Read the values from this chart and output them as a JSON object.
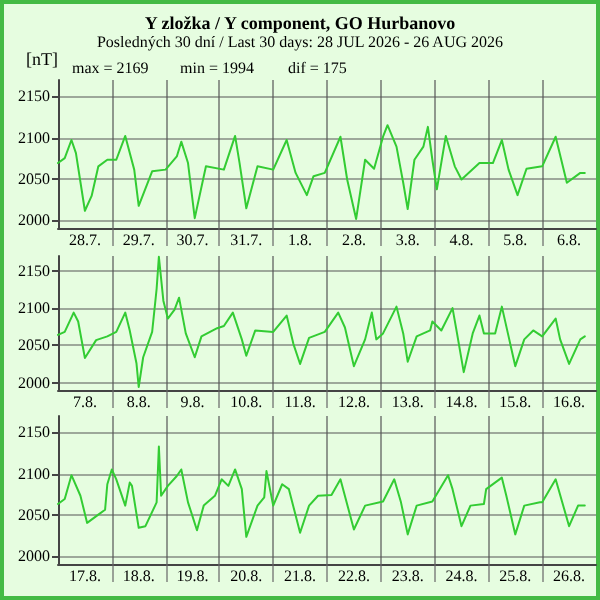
{
  "chart_data": [
    {
      "type": "line",
      "title": "Y zložka / Y component, GO Hurbanovo",
      "subtitle": "Posledných 30 dní / Last 30 days: 28 JUL 2026 - 26 AUG 2026",
      "ylabel": "[nT]",
      "annotations": [
        "max = 2169",
        "min = 1994",
        "dif = 175"
      ],
      "xlim": [
        "2026-07-28",
        "2026-08-07"
      ],
      "xticks": [
        {
          "value": "2026-07-28T12:00",
          "label": "28.7."
        },
        {
          "value": "2026-07-29",
          "label": null
        },
        {
          "value": "2026-07-29T12:00",
          "label": "29.7."
        },
        {
          "value": "2026-07-30",
          "label": null
        },
        {
          "value": "2026-07-30T12:00",
          "label": "30.7."
        },
        {
          "value": "2026-07-31",
          "label": null
        },
        {
          "value": "2026-07-31T12:00",
          "label": "31.7."
        },
        {
          "value": "2026-08-01",
          "label": null
        },
        {
          "value": "2026-08-01T12:00",
          "label": "1.8."
        },
        {
          "value": "2026-08-02",
          "label": null
        },
        {
          "value": "2026-08-02T12:00",
          "label": "2.8."
        },
        {
          "value": "2026-08-03",
          "label": null
        },
        {
          "value": "2026-08-03T12:00",
          "label": "3.8."
        },
        {
          "value": "2026-08-04",
          "label": null
        },
        {
          "value": "2026-08-04T12:00",
          "label": "4.8."
        },
        {
          "value": "2026-08-05",
          "label": null
        },
        {
          "value": "2026-08-05T12:00",
          "label": "5.8."
        },
        {
          "value": "2026-08-06",
          "label": null
        },
        {
          "value": "2026-08-06T12:00",
          "label": "6.8."
        }
      ],
      "ylim": [
        1990,
        2170
      ],
      "yticks": [
        2000,
        2050,
        2100,
        2150
      ],
      "grid": true,
      "marker": "none",
      "series": [
        {
          "color": "#33cc33",
          "x": [
            "2026-07-28T00:00",
            "2026-07-28T03:00",
            "2026-07-28T06:00",
            "2026-07-28T08:00",
            "2026-07-28T12:00",
            "2026-07-28T15:00",
            "2026-07-28T18:00",
            "2026-07-28T22:00",
            "2026-07-29T02:00",
            "2026-07-29T06:00",
            "2026-07-29T10:00",
            "2026-07-29T12:00",
            "2026-07-29T18:00",
            "2026-07-30T00:00",
            "2026-07-30T05:00",
            "2026-07-30T07:00",
            "2026-07-30T10:00",
            "2026-07-30T13:00",
            "2026-07-30T18:00",
            "2026-07-31T02:00",
            "2026-07-31T07:00",
            "2026-07-31T09:00",
            "2026-07-31T12:00",
            "2026-07-31T17:00",
            "2026-08-01T00:00",
            "2026-08-01T06:00",
            "2026-08-01T10:00",
            "2026-08-01T15:00",
            "2026-08-01T18:00",
            "2026-08-01T23:00",
            "2026-08-02T06:00",
            "2026-08-02T09:00",
            "2026-08-02T13:00",
            "2026-08-02T17:00",
            "2026-08-02T21:00",
            "2026-08-03T01:00",
            "2026-08-03T03:00",
            "2026-08-03T07:00",
            "2026-08-03T10:00",
            "2026-08-03T12:00",
            "2026-08-03T15:00",
            "2026-08-03T19:00",
            "2026-08-03T21:00",
            "2026-08-03T23:00",
            "2026-08-04T01:00",
            "2026-08-04T05:00",
            "2026-08-04T09:00",
            "2026-08-04T12:00",
            "2026-08-04T20:00",
            "2026-08-05T02:00",
            "2026-08-05T06:00",
            "2026-08-05T09:00",
            "2026-08-05T13:00",
            "2026-08-05T17:00",
            "2026-08-06T00:00",
            "2026-08-06T06:00",
            "2026-08-06T11:00",
            "2026-08-06T17:00",
            "2026-08-06T19:00"
          ],
          "values": [
            2069,
            2075,
            2097,
            2081,
            2011,
            2029,
            2065,
            2073,
            2073,
            2102,
            2061,
            2017,
            2059,
            2061,
            2077,
            2095,
            2069,
            2002,
            2065,
            2061,
            2102,
            2069,
            2014,
            2065,
            2061,
            2097,
            2057,
            2030,
            2053,
            2057,
            2101,
            2049,
            2001,
            2073,
            2062,
            2101,
            2115,
            2089,
            2045,
            2013,
            2073,
            2089,
            2113,
            2073,
            2037,
            2102,
            2065,
            2049,
            2069,
            2069,
            2097,
            2061,
            2030,
            2062,
            2065,
            2101,
            2045,
            2057,
            2057
          ]
        }
      ]
    },
    {
      "type": "line",
      "xlim": [
        "2026-08-07",
        "2026-08-17"
      ],
      "xticks": [
        {
          "value": "2026-08-07T12:00",
          "label": "7.8."
        },
        {
          "value": "2026-08-08",
          "label": null
        },
        {
          "value": "2026-08-08T12:00",
          "label": "8.8."
        },
        {
          "value": "2026-08-09",
          "label": null
        },
        {
          "value": "2026-08-09T12:00",
          "label": "9.8."
        },
        {
          "value": "2026-08-10",
          "label": null
        },
        {
          "value": "2026-08-10T12:00",
          "label": "10.8."
        },
        {
          "value": "2026-08-11",
          "label": null
        },
        {
          "value": "2026-08-11T12:00",
          "label": "11.8."
        },
        {
          "value": "2026-08-12",
          "label": null
        },
        {
          "value": "2026-08-12T12:00",
          "label": "12.8."
        },
        {
          "value": "2026-08-13",
          "label": null
        },
        {
          "value": "2026-08-13T12:00",
          "label": "13.8."
        },
        {
          "value": "2026-08-14",
          "label": null
        },
        {
          "value": "2026-08-14T12:00",
          "label": "14.8."
        },
        {
          "value": "2026-08-15",
          "label": null
        },
        {
          "value": "2026-08-15T12:00",
          "label": "15.8."
        },
        {
          "value": "2026-08-16",
          "label": null
        },
        {
          "value": "2026-08-16T12:00",
          "label": "16.8."
        }
      ],
      "ylim": [
        1990,
        2170
      ],
      "yticks": [
        2000,
        2050,
        2100,
        2150
      ],
      "grid": true,
      "marker": "none",
      "series": [
        {
          "color": "#33cc33",
          "x": [
            "2026-08-07T00:00",
            "2026-08-07T03:00",
            "2026-08-07T07:00",
            "2026-08-07T09:00",
            "2026-08-07T12:00",
            "2026-08-07T17:00",
            "2026-08-07T22:00",
            "2026-08-08T02:00",
            "2026-08-08T06:00",
            "2026-08-08T08:00",
            "2026-08-08T11:00",
            "2026-08-08T12:00",
            "2026-08-08T14:00",
            "2026-08-08T18:00",
            "2026-08-08T20:00",
            "2026-08-08T21:00",
            "2026-08-08T23:00",
            "2026-08-09T01:00",
            "2026-08-09T04:00",
            "2026-08-09T06:00",
            "2026-08-09T09:00",
            "2026-08-09T13:00",
            "2026-08-09T16:00",
            "2026-08-09T23:00",
            "2026-08-10T02:00",
            "2026-08-10T06:00",
            "2026-08-10T10:00",
            "2026-08-10T12:00",
            "2026-08-10T16:00",
            "2026-08-11T00:00",
            "2026-08-11T06:00",
            "2026-08-11T09:00",
            "2026-08-11T12:00",
            "2026-08-11T16:00",
            "2026-08-11T23:00",
            "2026-08-12T05:00",
            "2026-08-12T08:00",
            "2026-08-12T12:00",
            "2026-08-12T17:00",
            "2026-08-12T20:00",
            "2026-08-12T22:00",
            "2026-08-13T01:00",
            "2026-08-13T07:00",
            "2026-08-13T10:00",
            "2026-08-13T12:00",
            "2026-08-13T16:00",
            "2026-08-13T22:00",
            "2026-08-13T23:00",
            "2026-08-14T03:00",
            "2026-08-14T08:00",
            "2026-08-14T10:00",
            "2026-08-14T13:00",
            "2026-08-14T17:00",
            "2026-08-14T20:00",
            "2026-08-14T22:00",
            "2026-08-15T03:00",
            "2026-08-15T06:00",
            "2026-08-15T09:00",
            "2026-08-15T12:00",
            "2026-08-15T16:00",
            "2026-08-15T20:00",
            "2026-08-16T00:00",
            "2026-08-16T06:00",
            "2026-08-16T08:00",
            "2026-08-16T12:00",
            "2026-08-16T17:00",
            "2026-08-16T19:00"
          ],
          "values": [
            2064,
            2068,
            2094,
            2082,
            2033,
            2057,
            2062,
            2068,
            2094,
            2070,
            2026,
            1994,
            2034,
            2068,
            2126,
            2169,
            2110,
            2086,
            2098,
            2114,
            2066,
            2034,
            2062,
            2073,
            2076,
            2094,
            2058,
            2036,
            2070,
            2068,
            2090,
            2052,
            2025,
            2060,
            2068,
            2094,
            2074,
            2022,
            2058,
            2094,
            2058,
            2066,
            2102,
            2066,
            2028,
            2062,
            2070,
            2082,
            2070,
            2100,
            2066,
            2014,
            2066,
            2090,
            2066,
            2066,
            2102,
            2062,
            2022,
            2058,
            2070,
            2062,
            2086,
            2058,
            2025,
            2058,
            2062
          ]
        }
      ]
    },
    {
      "type": "line",
      "xlim": [
        "2026-08-17",
        "2026-08-27"
      ],
      "xticks": [
        {
          "value": "2026-08-17T12:00",
          "label": "17.8."
        },
        {
          "value": "2026-08-18",
          "label": null
        },
        {
          "value": "2026-08-18T12:00",
          "label": "18.8."
        },
        {
          "value": "2026-08-19",
          "label": null
        },
        {
          "value": "2026-08-19T12:00",
          "label": "19.8."
        },
        {
          "value": "2026-08-20",
          "label": null
        },
        {
          "value": "2026-08-20T12:00",
          "label": "20.8."
        },
        {
          "value": "2026-08-21",
          "label": null
        },
        {
          "value": "2026-08-21T12:00",
          "label": "21.8."
        },
        {
          "value": "2026-08-22",
          "label": null
        },
        {
          "value": "2026-08-22T12:00",
          "label": "22.8."
        },
        {
          "value": "2026-08-23",
          "label": null
        },
        {
          "value": "2026-08-23T12:00",
          "label": "23.8."
        },
        {
          "value": "2026-08-24",
          "label": null
        },
        {
          "value": "2026-08-24T12:00",
          "label": "24.8."
        },
        {
          "value": "2026-08-25",
          "label": null
        },
        {
          "value": "2026-08-25T12:00",
          "label": "25.8."
        },
        {
          "value": "2026-08-26",
          "label": null
        },
        {
          "value": "2026-08-26T12:00",
          "label": "26.8."
        }
      ],
      "ylim": [
        1990,
        2170
      ],
      "yticks": [
        2000,
        2050,
        2100,
        2150
      ],
      "grid": true,
      "marker": "none",
      "series": [
        {
          "color": "#33cc33",
          "x": [
            "2026-08-17T00:00",
            "2026-08-17T03:00",
            "2026-08-17T06:00",
            "2026-08-17T10:00",
            "2026-08-17T13:00",
            "2026-08-17T18:00",
            "2026-08-17T21:00",
            "2026-08-17T22:00",
            "2026-08-18T00:00",
            "2026-08-18T02:00",
            "2026-08-18T06:00",
            "2026-08-18T08:00",
            "2026-08-18T09:00",
            "2026-08-18T12:00",
            "2026-08-18T15:00",
            "2026-08-18T20:00",
            "2026-08-18T21:00",
            "2026-08-18T22:00",
            "2026-08-19T01:00",
            "2026-08-19T05:00",
            "2026-08-19T07:00",
            "2026-08-19T10:00",
            "2026-08-19T14:00",
            "2026-08-19T17:00",
            "2026-08-19T22:00",
            "2026-08-20T01:00",
            "2026-08-20T04:00",
            "2026-08-20T07:00",
            "2026-08-20T10:00",
            "2026-08-20T12:00",
            "2026-08-20T17:00",
            "2026-08-20T20:00",
            "2026-08-20T21:00",
            "2026-08-21T00:00",
            "2026-08-21T04:00",
            "2026-08-21T07:00",
            "2026-08-21T12:00",
            "2026-08-21T16:00",
            "2026-08-21T20:00",
            "2026-08-22T02:00",
            "2026-08-22T06:00",
            "2026-08-22T12:00",
            "2026-08-22T17:00",
            "2026-08-23T01:00",
            "2026-08-23T06:00",
            "2026-08-23T09:00",
            "2026-08-23T12:00",
            "2026-08-23T16:00",
            "2026-08-23T23:00",
            "2026-08-24T06:00",
            "2026-08-24T08:00",
            "2026-08-24T12:00",
            "2026-08-24T16:00",
            "2026-08-24T22:00",
            "2026-08-24T23:00",
            "2026-08-25T06:00",
            "2026-08-25T08:00",
            "2026-08-25T12:00",
            "2026-08-25T16:00",
            "2026-08-25T23:00",
            "2026-08-26T00:00",
            "2026-08-26T06:00",
            "2026-08-26T12:00",
            "2026-08-26T16:00",
            "2026-08-26T19:00"
          ],
          "values": [
            2063,
            2069,
            2098,
            2073,
            2040,
            2050,
            2056,
            2087,
            2105,
            2093,
            2061,
            2089,
            2085,
            2034,
            2036,
            2065,
            2133,
            2073,
            2085,
            2097,
            2105,
            2065,
            2031,
            2061,
            2073,
            2093,
            2085,
            2105,
            2081,
            2023,
            2061,
            2071,
            2103,
            2061,
            2087,
            2081,
            2028,
            2061,
            2073,
            2074,
            2093,
            2032,
            2061,
            2066,
            2093,
            2065,
            2026,
            2061,
            2066,
            2098,
            2081,
            2036,
            2061,
            2063,
            2081,
            2095,
            2073,
            2026,
            2061,
            2065,
            2065,
            2093,
            2036,
            2061,
            2061
          ]
        }
      ]
    }
  ]
}
